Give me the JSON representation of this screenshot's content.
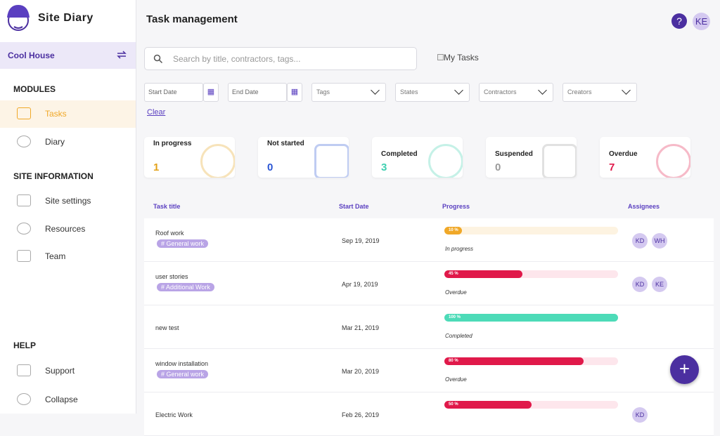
{
  "app": {
    "name": "Site Diary",
    "project": "Cool House"
  },
  "sidebar": {
    "sections": [
      {
        "title": "MODULES",
        "items": [
          "Tasks",
          "Diary"
        ]
      },
      {
        "title": "SITE INFORMATION",
        "items": [
          "Site settings",
          "Resources",
          "Team"
        ]
      },
      {
        "title": "HELP",
        "items": [
          "Support",
          "Collapse"
        ]
      }
    ]
  },
  "header": {
    "title": "Task management",
    "help": "?",
    "user": "KE"
  },
  "filters": {
    "search_placeholder": "Search by title, contractors, tags...",
    "my_tasks": "My Tasks",
    "start_date": "Start Date",
    "end_date": "End Date",
    "dropdowns": [
      "Tags",
      "States",
      "Contractors",
      "Creators"
    ],
    "clear": "Clear"
  },
  "stats": [
    {
      "label": "In progress",
      "value": 1,
      "color": "#e3a21a"
    },
    {
      "label": "Not started",
      "value": 0,
      "color": "#2a55d4"
    },
    {
      "label": "Completed",
      "value": 3,
      "color": "#3ecfb0"
    },
    {
      "label": "Suspended",
      "value": 0,
      "color": "#9a9a9a"
    },
    {
      "label": "Overdue",
      "value": 7,
      "color": "#e0194a"
    }
  ],
  "table": {
    "columns": [
      "Task title",
      "Start Date",
      "Progress",
      "Assignees"
    ],
    "rows": [
      {
        "title": "Roof work",
        "tag": "# General work",
        "date": "Sep 19, 2019",
        "progress": 10,
        "progress_label": "10 %",
        "status": "In progress",
        "bar_color": "#f0a828",
        "track_color": "#fdf3e1",
        "assignees": [
          "KD",
          "WH"
        ]
      },
      {
        "title": "user stories",
        "tag": "# Additional Work",
        "date": "Apr 19, 2019",
        "progress": 45,
        "progress_label": "45 %",
        "status": "Overdue",
        "bar_color": "#e0194a",
        "track_color": "#fde6ec",
        "assignees": [
          "KD",
          "KE"
        ]
      },
      {
        "title": "new test",
        "date": "Mar 21, 2019",
        "progress": 100,
        "progress_label": "100 %",
        "status": "Completed",
        "bar_color": "#4ddbb8",
        "track_color": "#e2f8f2",
        "assignees": []
      },
      {
        "title": "window installation",
        "tag": "# General work",
        "date": "Mar 20, 2019",
        "progress": 80,
        "progress_label": "80 %",
        "status": "Overdue",
        "bar_color": "#e0194a",
        "track_color": "#fde6ec",
        "assignees": []
      },
      {
        "title": "Electric Work",
        "date": "Feb 26, 2019",
        "progress": 50,
        "progress_label": "50 %",
        "bar_color": "#e0194a",
        "track_color": "#fde6ec",
        "assignees": [
          "KD"
        ]
      }
    ]
  }
}
